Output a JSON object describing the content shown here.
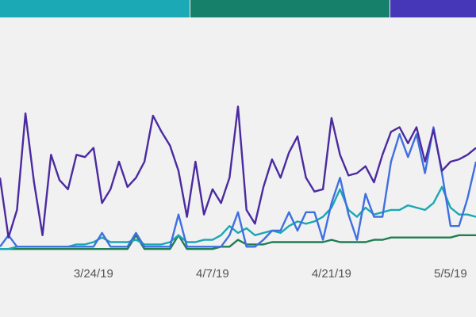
{
  "chart_data": {
    "type": "line",
    "categories": [
      null,
      null,
      null,
      null,
      null,
      null,
      null,
      null,
      null,
      null,
      null,
      "3/24/19",
      null,
      null,
      null,
      null,
      null,
      null,
      null,
      null,
      null,
      null,
      null,
      null,
      null,
      "4/7/19",
      null,
      null,
      null,
      null,
      null,
      null,
      null,
      null,
      null,
      null,
      null,
      null,
      null,
      "4/21/19",
      null,
      null,
      null,
      null,
      null,
      null,
      null,
      null,
      null,
      null,
      null,
      null,
      null,
      "5/5/19",
      null,
      null,
      null
    ],
    "ylim": [
      0,
      100
    ],
    "series": [
      {
        "color": "#4b2aa0",
        "values": [
          33,
          7,
          19,
          61,
          31,
          8,
          43,
          32,
          28,
          43,
          42,
          46,
          22,
          28,
          40,
          29,
          33,
          40,
          60,
          53,
          47,
          36,
          16,
          40,
          17,
          28,
          22,
          33,
          64,
          19,
          13,
          29,
          41,
          33,
          44,
          51,
          33,
          27,
          28,
          59,
          43,
          34,
          35,
          38,
          31,
          43,
          53,
          55,
          48,
          55,
          40,
          54,
          36,
          40,
          41,
          43,
          46
        ]
      },
      {
        "color": "#3f6fe0",
        "values": [
          3,
          8,
          3,
          3,
          3,
          3,
          3,
          3,
          3,
          3,
          3,
          3,
          9,
          3,
          3,
          3,
          9,
          3,
          3,
          3,
          3,
          17,
          3,
          3,
          3,
          3,
          3,
          8,
          18,
          3,
          3,
          6,
          10,
          10,
          18,
          10,
          18,
          18,
          6,
          22,
          33,
          17,
          6,
          26,
          16,
          16,
          40,
          52,
          42,
          52,
          35,
          55,
          35,
          12,
          12,
          24,
          40
        ]
      },
      {
        "color": "#1aa7b3",
        "values": [
          2,
          2,
          3,
          3,
          3,
          3,
          3,
          3,
          3,
          4,
          4,
          5,
          7,
          5,
          5,
          5,
          6,
          4,
          4,
          4,
          5,
          8,
          5,
          5,
          6,
          6,
          8,
          12,
          9,
          11,
          8,
          9,
          10,
          9,
          12,
          14,
          13,
          14,
          16,
          20,
          28,
          19,
          16,
          20,
          17,
          18,
          19,
          19,
          21,
          20,
          19,
          22,
          29,
          20,
          17,
          17,
          16
        ]
      },
      {
        "color": "#1f7d52",
        "values": [
          2,
          2,
          2,
          2,
          2,
          2,
          2,
          2,
          2,
          2,
          2,
          2,
          2,
          2,
          2,
          2,
          8,
          2,
          2,
          2,
          2,
          8,
          2,
          2,
          2,
          2,
          3,
          3,
          6,
          4,
          4,
          4,
          5,
          5,
          5,
          5,
          5,
          5,
          5,
          6,
          5,
          5,
          5,
          5,
          6,
          6,
          7,
          7,
          7,
          7,
          7,
          7,
          7,
          7,
          8,
          8,
          8
        ]
      }
    ]
  }
}
